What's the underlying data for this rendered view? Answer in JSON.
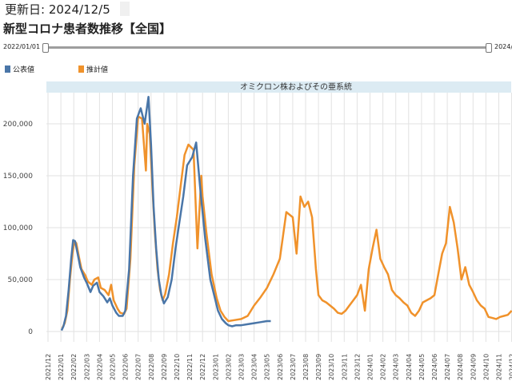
{
  "header": {
    "update_text": "更新日: 2024/12/5",
    "title": "新型コロナ患者数推移【全国】"
  },
  "range_slider": {
    "start_label": "2022/01/01",
    "end_label": "2024/"
  },
  "legend": [
    {
      "label": "公表値",
      "color": "#4a76a8"
    },
    {
      "label": "推計値",
      "color": "#f0922b"
    }
  ],
  "chart_data": {
    "type": "line",
    "band_label": "オミクロン株およびその亜系統",
    "ylim": [
      -10000,
      230000
    ],
    "yticks": [
      0,
      50000,
      100000,
      150000,
      200000
    ],
    "ytick_labels": [
      "0",
      "50,000",
      "100,000",
      "150,000",
      "200,000"
    ],
    "x_tick_labels": [
      "2021/12",
      "2022/01",
      "2022/02",
      "2022/03",
      "2022/04",
      "2022/05",
      "2022/06",
      "2022/07",
      "2022/08",
      "2022/09",
      "2022/10",
      "2022/11",
      "2022/12",
      "2023/01",
      "2023/02",
      "2023/03",
      "2023/04",
      "2023/05",
      "2023/06",
      "2023/07",
      "2023/08",
      "2023/09",
      "2023/10",
      "2023/11",
      "2023/12",
      "2024/01",
      "2024/02",
      "2024/03",
      "2024/04",
      "2024/05",
      "2024/06",
      "2024/07",
      "2024/08",
      "2024/09",
      "2024/10",
      "2024/11",
      "2024/12"
    ],
    "grid": true,
    "series": [
      {
        "name": "公表値",
        "color": "#4a76a8",
        "x": [
          1.05,
          1.2,
          1.4,
          1.6,
          1.8,
          1.95,
          2.1,
          2.3,
          2.5,
          2.8,
          3.0,
          3.3,
          3.5,
          3.8,
          4.0,
          4.3,
          4.6,
          4.8,
          5.0,
          5.3,
          5.5,
          5.8,
          6.0,
          6.3,
          6.6,
          6.9,
          7.2,
          7.5,
          7.8,
          8.0,
          8.2,
          8.4,
          8.6,
          8.8,
          9.0,
          9.3,
          9.6,
          9.9,
          10.2,
          10.5,
          10.8,
          11.2,
          11.5,
          11.8,
          12.2,
          12.6,
          13.0,
          13.2,
          13.5,
          13.8,
          14.0,
          14.3,
          14.6,
          15.0,
          15.5,
          16.0,
          16.5,
          17.0,
          17.3
        ],
        "y": [
          1000,
          5000,
          15000,
          40000,
          70000,
          88000,
          87000,
          75000,
          62000,
          52000,
          47000,
          38000,
          44000,
          47000,
          38000,
          34000,
          28000,
          32000,
          25000,
          18000,
          15000,
          15000,
          20000,
          60000,
          150000,
          205000,
          215000,
          200000,
          226000,
          180000,
          120000,
          80000,
          50000,
          35000,
          27000,
          33000,
          50000,
          80000,
          105000,
          130000,
          160000,
          168000,
          182000,
          140000,
          90000,
          50000,
          30000,
          20000,
          12000,
          8000,
          6000,
          5000,
          6000,
          6000,
          7000,
          8000,
          9000,
          10000,
          10000
        ]
      },
      {
        "name": "推計値",
        "color": "#f0922b",
        "x": [
          1.1,
          1.3,
          1.5,
          1.7,
          1.9,
          2.05,
          2.2,
          2.4,
          2.6,
          2.9,
          3.1,
          3.4,
          3.6,
          3.9,
          4.1,
          4.4,
          4.7,
          4.9,
          5.1,
          5.4,
          5.6,
          5.9,
          6.1,
          6.4,
          6.7,
          7.0,
          7.3,
          7.6,
          7.7,
          7.9,
          8.1,
          8.3,
          8.5,
          8.7,
          8.9,
          9.1,
          9.4,
          9.7,
          10.0,
          10.3,
          10.6,
          10.9,
          11.3,
          11.6,
          11.9,
          12.0,
          12.3,
          12.7,
          13.1,
          13.4,
          13.7,
          14.0,
          14.5,
          15.0,
          15.5,
          16.0,
          16.5,
          17.0,
          17.5,
          18.0,
          18.5,
          19.0,
          19.3,
          19.6,
          19.9,
          20.2,
          20.5,
          20.8,
          21.0,
          21.3,
          21.6,
          21.9,
          22.2,
          22.5,
          22.8,
          23.1,
          23.4,
          23.7,
          24.0,
          24.3,
          24.6,
          24.9,
          25.2,
          25.5,
          25.8,
          26.1,
          26.4,
          26.7,
          27.0,
          27.3,
          27.6,
          27.9,
          28.2,
          28.5,
          28.8,
          29.1,
          29.4,
          29.7,
          30.0,
          30.3,
          30.6,
          30.9,
          31.2,
          31.5,
          31.8,
          32.1,
          32.4,
          32.7,
          33.0,
          33.3,
          33.6,
          33.9,
          34.2,
          34.5,
          34.8,
          35.1,
          35.4,
          35.7,
          36.0
        ],
        "y": [
          3000,
          8000,
          20000,
          50000,
          75000,
          87000,
          85000,
          72000,
          60000,
          54000,
          48000,
          45000,
          50000,
          52000,
          42000,
          40000,
          35000,
          45000,
          30000,
          22000,
          18000,
          17000,
          22000,
          70000,
          160000,
          207000,
          205000,
          155000,
          200000,
          190000,
          140000,
          95000,
          60000,
          40000,
          30000,
          36000,
          55000,
          85000,
          110000,
          140000,
          170000,
          180000,
          175000,
          80000,
          150000,
          130000,
          95000,
          55000,
          32000,
          20000,
          14000,
          10000,
          11000,
          12000,
          15000,
          25000,
          33000,
          42000,
          55000,
          70000,
          115000,
          110000,
          75000,
          130000,
          120000,
          125000,
          110000,
          60000,
          35000,
          30000,
          28000,
          25000,
          22000,
          18000,
          17000,
          20000,
          25000,
          30000,
          35000,
          45000,
          20000,
          60000,
          80000,
          98000,
          70000,
          62000,
          55000,
          40000,
          35000,
          32000,
          28000,
          25000,
          18000,
          15000,
          20000,
          28000,
          30000,
          32000,
          35000,
          55000,
          75000,
          85000,
          120000,
          105000,
          80000,
          50000,
          62000,
          45000,
          38000,
          30000,
          25000,
          22000,
          14000,
          13000,
          12000,
          14000,
          15000,
          16000,
          20000
        ]
      }
    ]
  }
}
